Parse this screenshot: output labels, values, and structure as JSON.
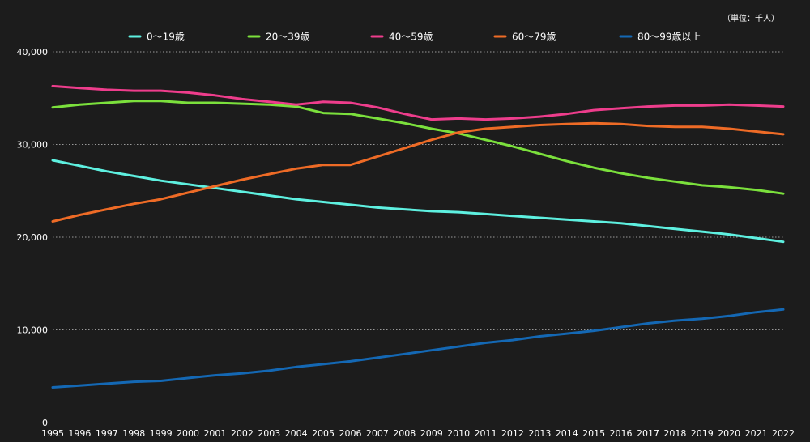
{
  "unit_label": "（単位：千人）",
  "chart_data": {
    "type": "line",
    "x": [
      1995,
      1996,
      1997,
      1998,
      1999,
      2000,
      2001,
      2002,
      2003,
      2004,
      2005,
      2006,
      2007,
      2008,
      2009,
      2010,
      2011,
      2012,
      2013,
      2014,
      2015,
      2016,
      2017,
      2018,
      2019,
      2020,
      2021,
      2022
    ],
    "ylim": [
      0,
      40000
    ],
    "yticks": [
      0,
      10000,
      20000,
      30000,
      40000
    ],
    "ytick_labels": [
      "0",
      "10,000",
      "20,000",
      "30,000",
      "40,000"
    ],
    "grid": true,
    "legend_position": "top",
    "series": [
      {
        "name": "0〜19歳",
        "color": "#5ef0e0",
        "values": [
          28300,
          27700,
          27100,
          26600,
          26100,
          25700,
          25300,
          24900,
          24500,
          24100,
          23800,
          23500,
          23200,
          23000,
          22800,
          22700,
          22500,
          22300,
          22100,
          21900,
          21700,
          21500,
          21200,
          20900,
          20600,
          20300,
          19900,
          19500
        ]
      },
      {
        "name": "20〜39歳",
        "color": "#7be03c",
        "values": [
          34000,
          34300,
          34500,
          34700,
          34700,
          34500,
          34500,
          34400,
          34300,
          34100,
          33400,
          33300,
          32800,
          32300,
          31700,
          31200,
          30500,
          29800,
          29000,
          28200,
          27500,
          26900,
          26400,
          26000,
          25600,
          25400,
          25100,
          24700
        ]
      },
      {
        "name": "40〜59歳",
        "color": "#ee3d8c",
        "values": [
          36300,
          36100,
          35900,
          35800,
          35800,
          35600,
          35300,
          34900,
          34600,
          34300,
          34600,
          34500,
          34000,
          33300,
          32700,
          32800,
          32700,
          32800,
          33000,
          33300,
          33700,
          33900,
          34100,
          34200,
          34200,
          34300,
          34200,
          34100
        ]
      },
      {
        "name": "60〜79歳",
        "color": "#ee6b26",
        "values": [
          21700,
          22400,
          23000,
          23600,
          24100,
          24800,
          25500,
          26200,
          26800,
          27400,
          27800,
          27800,
          28700,
          29600,
          30500,
          31300,
          31700,
          31900,
          32100,
          32200,
          32300,
          32200,
          32000,
          31900,
          31900,
          31700,
          31400,
          31100
        ]
      },
      {
        "name": "80〜99歳以上",
        "color": "#1468b4",
        "values": [
          3800,
          4000,
          4200,
          4400,
          4500,
          4800,
          5100,
          5300,
          5600,
          6000,
          6300,
          6600,
          7000,
          7400,
          7800,
          8200,
          8600,
          8900,
          9300,
          9600,
          9900,
          10300,
          10700,
          11000,
          11200,
          11500,
          11900,
          12200
        ]
      }
    ]
  }
}
